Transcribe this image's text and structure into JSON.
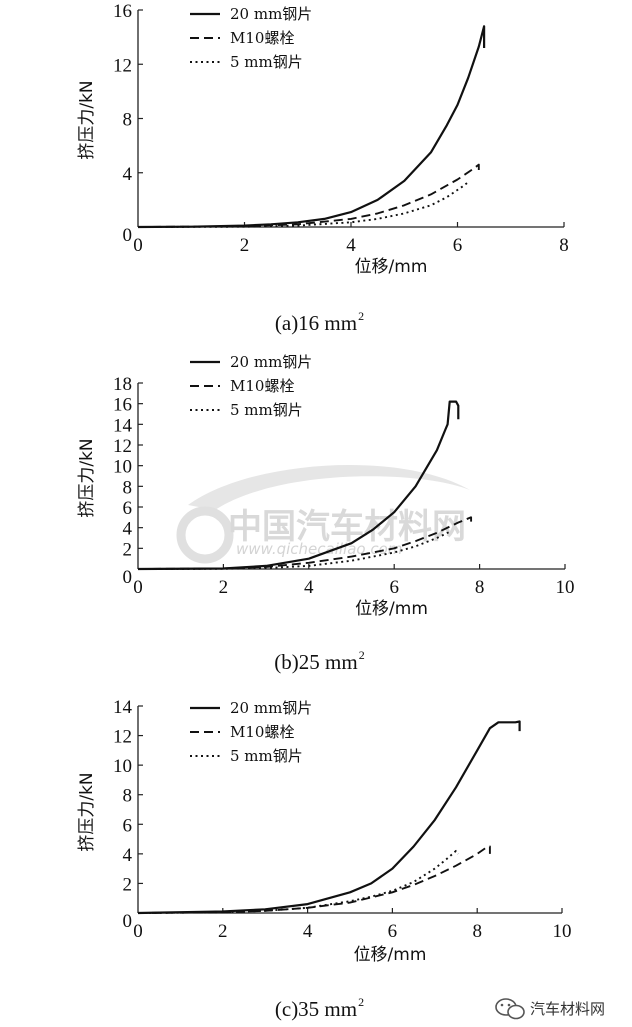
{
  "watermark": {
    "text": "中国汽车材料网",
    "url": "www.qichecailiao.com"
  },
  "footer": {
    "text": "汽车材料网",
    "icon": "wechat-icon"
  },
  "chart_data": [
    {
      "type": "line",
      "caption": "(a)16 mm",
      "caption_sup": "2",
      "xlabel": "位移/mm",
      "ylabel": "挤压力/kN",
      "xlim": [
        0,
        8
      ],
      "ylim": [
        0,
        16
      ],
      "xticks": [
        0,
        2,
        4,
        6,
        8
      ],
      "yticks": [
        0,
        4,
        8,
        12,
        16
      ],
      "legend": "top-left",
      "series": [
        {
          "name": "20 mm钢片",
          "style": "solid",
          "points": [
            [
              0,
              0
            ],
            [
              1,
              0.02
            ],
            [
              2,
              0.1
            ],
            [
              2.5,
              0.2
            ],
            [
              3,
              0.35
            ],
            [
              3.5,
              0.6
            ],
            [
              4,
              1.1
            ],
            [
              4.5,
              2
            ],
            [
              5,
              3.4
            ],
            [
              5.5,
              5.5
            ],
            [
              5.8,
              7.5
            ],
            [
              6,
              9
            ],
            [
              6.2,
              11
            ],
            [
              6.4,
              13.3
            ],
            [
              6.5,
              14.8
            ],
            [
              6.5,
              13.2
            ]
          ]
        },
        {
          "name": "M10螺栓",
          "style": "dashed",
          "points": [
            [
              0,
              0
            ],
            [
              2,
              0.05
            ],
            [
              3,
              0.2
            ],
            [
              4,
              0.6
            ],
            [
              4.5,
              1
            ],
            [
              5,
              1.6
            ],
            [
              5.5,
              2.4
            ],
            [
              6,
              3.5
            ],
            [
              6.3,
              4.3
            ],
            [
              6.4,
              4.6
            ],
            [
              6.4,
              4.0
            ]
          ]
        },
        {
          "name": "5 mm钢片",
          "style": "dotted",
          "points": [
            [
              0,
              0
            ],
            [
              2,
              0.02
            ],
            [
              3,
              0.1
            ],
            [
              4,
              0.35
            ],
            [
              4.5,
              0.6
            ],
            [
              5,
              1
            ],
            [
              5.5,
              1.6
            ],
            [
              5.8,
              2.2
            ],
            [
              6.1,
              3
            ],
            [
              6.2,
              3.3
            ]
          ]
        }
      ]
    },
    {
      "type": "line",
      "caption": "(b)25 mm",
      "caption_sup": "2",
      "xlabel": "位移/mm",
      "ylabel": "挤压力/kN",
      "xlim": [
        0,
        10
      ],
      "ylim": [
        0,
        18
      ],
      "xticks": [
        0,
        2,
        4,
        6,
        8,
        10
      ],
      "yticks": [
        0,
        2,
        4,
        6,
        8,
        10,
        12,
        14,
        16,
        18
      ],
      "legend": "top-left",
      "series": [
        {
          "name": "20 mm钢片",
          "style": "solid",
          "points": [
            [
              0,
              0
            ],
            [
              2,
              0.05
            ],
            [
              3,
              0.3
            ],
            [
              4,
              1
            ],
            [
              5,
              2.5
            ],
            [
              5.5,
              3.8
            ],
            [
              6,
              5.5
            ],
            [
              6.5,
              8
            ],
            [
              7,
              11.5
            ],
            [
              7.2,
              13.5
            ],
            [
              7.25,
              14
            ],
            [
              7.3,
              16.2
            ],
            [
              7.45,
              16.2
            ],
            [
              7.5,
              15.8
            ],
            [
              7.5,
              14.5
            ]
          ]
        },
        {
          "name": "M10螺栓",
          "style": "dashed",
          "points": [
            [
              0,
              0
            ],
            [
              2,
              0.05
            ],
            [
              3,
              0.2
            ],
            [
              4,
              0.6
            ],
            [
              5,
              1.2
            ],
            [
              6,
              2
            ],
            [
              6.5,
              2.7
            ],
            [
              7,
              3.5
            ],
            [
              7.5,
              4.5
            ],
            [
              7.8,
              5
            ],
            [
              7.8,
              4.3
            ]
          ]
        },
        {
          "name": "5 mm钢片",
          "style": "dotted",
          "points": [
            [
              0,
              0
            ],
            [
              2,
              0.02
            ],
            [
              3,
              0.1
            ],
            [
              4,
              0.3
            ],
            [
              5,
              0.8
            ],
            [
              6,
              1.6
            ],
            [
              6.5,
              2.2
            ],
            [
              7,
              3
            ],
            [
              7.3,
              3.6
            ]
          ]
        }
      ]
    },
    {
      "type": "line",
      "caption": "(c)35 mm",
      "caption_sup": "2",
      "xlabel": "位移/mm",
      "ylabel": "挤压力/kN",
      "xlim": [
        0,
        10
      ],
      "ylim": [
        0,
        14
      ],
      "xticks": [
        0,
        2,
        4,
        6,
        8,
        10
      ],
      "yticks": [
        0,
        2,
        4,
        6,
        8,
        10,
        12,
        14
      ],
      "legend": "top-left",
      "series": [
        {
          "name": "20 mm钢片",
          "style": "solid",
          "points": [
            [
              0,
              0
            ],
            [
              2,
              0.1
            ],
            [
              3,
              0.25
            ],
            [
              4,
              0.6
            ],
            [
              5,
              1.4
            ],
            [
              5.5,
              2
            ],
            [
              6,
              3
            ],
            [
              6.5,
              4.5
            ],
            [
              7,
              6.3
            ],
            [
              7.5,
              8.5
            ],
            [
              8,
              11
            ],
            [
              8.3,
              12.5
            ],
            [
              8.5,
              12.9
            ],
            [
              8.9,
              12.9
            ],
            [
              9,
              12.95
            ],
            [
              9,
              12.3
            ]
          ]
        },
        {
          "name": "M10螺栓",
          "style": "dashed",
          "points": [
            [
              0,
              0
            ],
            [
              2,
              0.05
            ],
            [
              3,
              0.15
            ],
            [
              4,
              0.35
            ],
            [
              5,
              0.7
            ],
            [
              6,
              1.4
            ],
            [
              6.5,
              1.9
            ],
            [
              7,
              2.5
            ],
            [
              7.5,
              3.2
            ],
            [
              8,
              4
            ],
            [
              8.2,
              4.4
            ],
            [
              8.3,
              4.5
            ],
            [
              8.3,
              4.0
            ]
          ]
        },
        {
          "name": "5 mm钢片",
          "style": "dotted",
          "points": [
            [
              0,
              0
            ],
            [
              2,
              0.05
            ],
            [
              3,
              0.15
            ],
            [
              4,
              0.35
            ],
            [
              5,
              0.8
            ],
            [
              5.5,
              1.1
            ],
            [
              6,
              1.5
            ],
            [
              6.5,
              2.1
            ],
            [
              7,
              3
            ],
            [
              7.3,
              3.7
            ],
            [
              7.5,
              4.2
            ],
            [
              7.55,
              4.0
            ]
          ]
        }
      ]
    }
  ]
}
